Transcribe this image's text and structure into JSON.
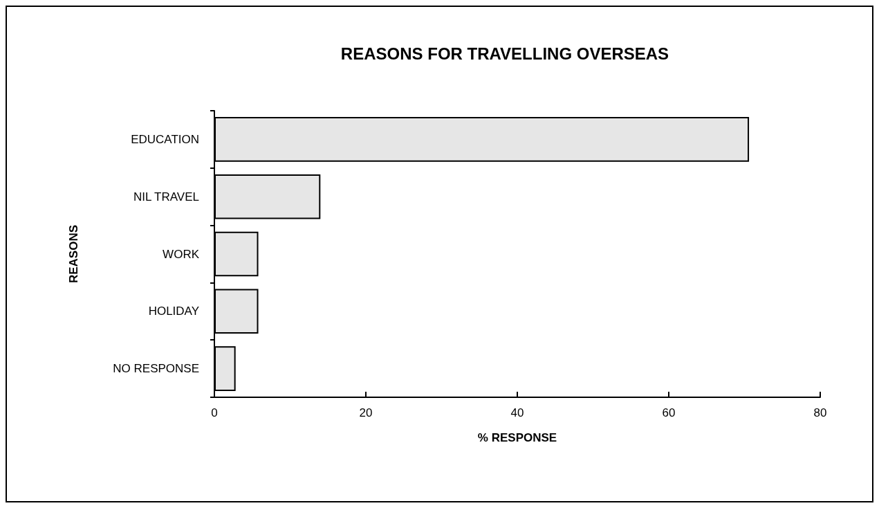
{
  "chart_data": {
    "type": "bar",
    "orientation": "horizontal",
    "title": "REASONS FOR TRAVELLING OVERSEAS",
    "xlabel": "% RESPONSE",
    "ylabel": "REASONS",
    "categories": [
      "EDUCATION",
      "NIL TRAVEL",
      "WORK",
      "HOLIDAY",
      "NO RESPONSE"
    ],
    "values": [
      70.6,
      14,
      5.8,
      5.8,
      2.8
    ],
    "color": "#e6e6e6",
    "xlim": [
      0,
      80
    ],
    "xticks": [
      0,
      20,
      40,
      60,
      80
    ],
    "grid": false
  }
}
